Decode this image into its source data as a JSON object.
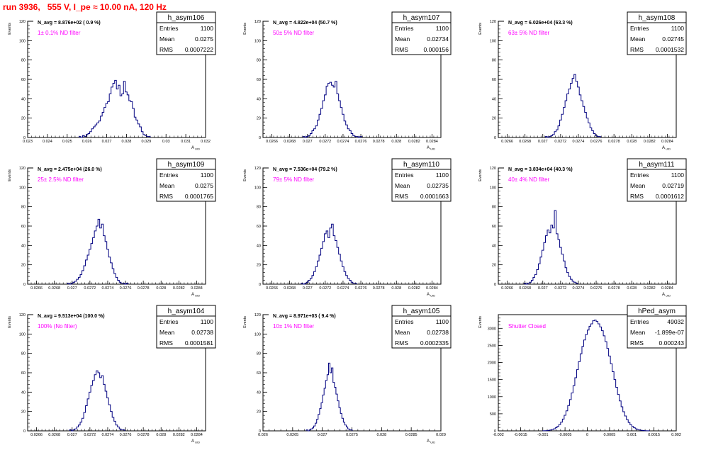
{
  "header": {
    "title": "run 3936,   555 V, I_pe ≈ 10.00 nA, 120 Hz",
    "title_color": "#ff0000"
  },
  "style": {
    "hist_color": "#000080",
    "label_color": "#ff00ff",
    "axis_color": "#000000"
  },
  "chart_data": [
    {
      "type": "histogram",
      "name": "h_asym106",
      "navg": "N_avg = 8.876e+02 ( 0.9 %)",
      "label": "1± 0.1% ND filter",
      "stats": [
        [
          "Entries",
          "1100"
        ],
        [
          "Mean",
          "0.0275"
        ],
        [
          "RMS",
          "0.0007222"
        ]
      ],
      "xlabel": "A_UID",
      "ylabel": "Events",
      "xlim": [
        0.023,
        0.032
      ],
      "ylim": [
        0,
        120
      ],
      "xticks": [
        0.023,
        0.024,
        0.025,
        0.026,
        0.027,
        0.028,
        0.029,
        0.03,
        0.031,
        0.032
      ],
      "xtick_labels": [
        "0.023",
        "0.024",
        "0.025",
        "0.026",
        "0.027",
        "0.028",
        "0.029",
        "0.03",
        "0.031",
        "0.032"
      ],
      "yticks": [
        0,
        20,
        40,
        60,
        80,
        100,
        120
      ],
      "ytick_labels": [
        "0",
        "20",
        "40",
        "60",
        "80",
        "100",
        "120"
      ],
      "bin_start": 0.0256,
      "bin_width": 9e-05,
      "counts": [
        1,
        0,
        2,
        1,
        3,
        4,
        6,
        9,
        11,
        13,
        15,
        17,
        22,
        26,
        31,
        35,
        37,
        45,
        52,
        56,
        59,
        50,
        54,
        43,
        45,
        58,
        47,
        44,
        38,
        37,
        30,
        21,
        18,
        14,
        11,
        6,
        3,
        2,
        1,
        1
      ]
    },
    {
      "type": "histogram",
      "name": "h_asym107",
      "navg": "N_avg = 4.822e+04 (50.7 %)",
      "label": "50± 5% ND filter",
      "stats": [
        [
          "Entries",
          "1100"
        ],
        [
          "Mean",
          "0.02734"
        ],
        [
          "RMS",
          "0.000156"
        ]
      ],
      "xlabel": "A_UID",
      "ylabel": "Events",
      "xlim": [
        0.0265,
        0.0285
      ],
      "ylim": [
        0,
        120
      ],
      "xticks": [
        0.0266,
        0.0268,
        0.027,
        0.0272,
        0.0274,
        0.0276,
        0.0278,
        0.028,
        0.0282,
        0.0284
      ],
      "xtick_labels": [
        "0.0266",
        "0.0268",
        "0.027",
        "0.0272",
        "0.0274",
        "0.0276",
        "0.0278",
        "0.028",
        "0.0282",
        "0.0284"
      ],
      "yticks": [
        0,
        20,
        40,
        60,
        80,
        100,
        120
      ],
      "ytick_labels": [
        "0",
        "20",
        "40",
        "60",
        "80",
        "100",
        "120"
      ],
      "bin_start": 0.02695,
      "bin_width": 2e-05,
      "counts": [
        1,
        0,
        1,
        2,
        4,
        7,
        9,
        12,
        18,
        24,
        30,
        38,
        44,
        53,
        56,
        57,
        54,
        52,
        58,
        45,
        38,
        31,
        24,
        17,
        13,
        9,
        7,
        4,
        2,
        1,
        1,
        0,
        1
      ]
    },
    {
      "type": "histogram",
      "name": "h_asym108",
      "navg": "N_avg = 6.026e+04 (63.3 %)",
      "label": "63± 5% ND filter",
      "stats": [
        [
          "Entries",
          "1100"
        ],
        [
          "Mean",
          "0.02745"
        ],
        [
          "RMS",
          "0.0001532"
        ]
      ],
      "xlabel": "A_UID",
      "ylabel": "Events",
      "xlim": [
        0.0265,
        0.0285
      ],
      "ylim": [
        0,
        120
      ],
      "xticks": [
        0.0266,
        0.0268,
        0.027,
        0.0272,
        0.0274,
        0.0276,
        0.0278,
        0.028,
        0.0282,
        0.0284
      ],
      "xtick_labels": [
        "0.0266",
        "0.0268",
        "0.027",
        "0.0272",
        "0.0274",
        "0.0276",
        "0.0278",
        "0.028",
        "0.0282",
        "0.0284"
      ],
      "yticks": [
        0,
        20,
        40,
        60,
        80,
        100,
        120
      ],
      "ytick_labels": [
        "0",
        "20",
        "40",
        "60",
        "80",
        "100",
        "120"
      ],
      "bin_start": 0.02703,
      "bin_width": 2e-05,
      "counts": [
        1,
        0,
        1,
        2,
        3,
        6,
        8,
        12,
        18,
        24,
        31,
        38,
        45,
        50,
        56,
        61,
        65,
        58,
        52,
        44,
        38,
        32,
        26,
        20,
        15,
        10,
        7,
        4,
        2,
        1,
        1
      ]
    },
    {
      "type": "histogram",
      "name": "h_asym109",
      "navg": "N_avg = 2.475e+04 (26.0 %)",
      "label": "25± 2.5% ND filter",
      "stats": [
        [
          "Entries",
          "1100"
        ],
        [
          "Mean",
          "0.0275"
        ],
        [
          "RMS",
          "0.0001765"
        ]
      ],
      "xlabel": "A_UID",
      "ylabel": "Events",
      "xlim": [
        0.0265,
        0.0285
      ],
      "ylim": [
        0,
        120
      ],
      "xticks": [
        0.0266,
        0.0268,
        0.027,
        0.0272,
        0.0274,
        0.0276,
        0.0278,
        0.028,
        0.0282,
        0.0284
      ],
      "xtick_labels": [
        "0.0266",
        "0.0268",
        "0.027",
        "0.0272",
        "0.0274",
        "0.0276",
        "0.0278",
        "0.028",
        "0.0282",
        "0.0284"
      ],
      "yticks": [
        0,
        20,
        40,
        60,
        80,
        100,
        120
      ],
      "ytick_labels": [
        "0",
        "20",
        "40",
        "60",
        "80",
        "100",
        "120"
      ],
      "bin_start": 0.02695,
      "bin_width": 2e-05,
      "counts": [
        1,
        0,
        1,
        2,
        3,
        5,
        7,
        10,
        14,
        19,
        25,
        30,
        36,
        42,
        48,
        55,
        60,
        67,
        58,
        62,
        50,
        44,
        36,
        28,
        22,
        16,
        11,
        7,
        4,
        2,
        1,
        1,
        0,
        1
      ]
    },
    {
      "type": "histogram",
      "name": "h_asym110",
      "navg": "N_avg = 7.536e+04 (79.2 %)",
      "label": "79± 5% ND filter",
      "stats": [
        [
          "Entries",
          "1100"
        ],
        [
          "Mean",
          "0.02735"
        ],
        [
          "RMS",
          "0.0001663"
        ]
      ],
      "xlabel": "A_UID",
      "ylabel": "Events",
      "xlim": [
        0.0265,
        0.0285
      ],
      "ylim": [
        0,
        120
      ],
      "xticks": [
        0.0266,
        0.0268,
        0.027,
        0.0272,
        0.0274,
        0.0276,
        0.0278,
        0.028,
        0.0282,
        0.0284
      ],
      "xtick_labels": [
        "0.0266",
        "0.0268",
        "0.027",
        "0.0272",
        "0.0274",
        "0.0276",
        "0.0278",
        "0.028",
        "0.0282",
        "0.0284"
      ],
      "yticks": [
        0,
        20,
        40,
        60,
        80,
        100,
        120
      ],
      "ytick_labels": [
        "0",
        "20",
        "40",
        "60",
        "80",
        "100",
        "120"
      ],
      "bin_start": 0.02693,
      "bin_width": 2e-05,
      "counts": [
        1,
        0,
        1,
        2,
        4,
        6,
        9,
        13,
        18,
        24,
        30,
        37,
        44,
        52,
        55,
        48,
        58,
        62,
        50,
        45,
        38,
        31,
        24,
        18,
        13,
        9,
        6,
        4,
        2,
        1,
        1
      ]
    },
    {
      "type": "histogram",
      "name": "h_asym111",
      "navg": "N_avg = 3.834e+04 (40.3 %)",
      "label": "40± 4% ND filter",
      "stats": [
        [
          "Entries",
          "1100"
        ],
        [
          "Mean",
          "0.02719"
        ],
        [
          "RMS",
          "0.0001612"
        ]
      ],
      "xlabel": "A_UID",
      "ylabel": "Events",
      "xlim": [
        0.0265,
        0.0285
      ],
      "ylim": [
        0,
        120
      ],
      "xticks": [
        0.0266,
        0.0268,
        0.027,
        0.0272,
        0.0274,
        0.0276,
        0.0278,
        0.028,
        0.0282,
        0.0284
      ],
      "xtick_labels": [
        "0.0266",
        "0.0268",
        "0.027",
        "0.0272",
        "0.0274",
        "0.0276",
        "0.0278",
        "0.028",
        "0.0282",
        "0.0284"
      ],
      "yticks": [
        0,
        20,
        40,
        60,
        80,
        100,
        120
      ],
      "ytick_labels": [
        "0",
        "20",
        "40",
        "60",
        "80",
        "100",
        "120"
      ],
      "bin_start": 0.02679,
      "bin_width": 2e-05,
      "counts": [
        1,
        0,
        1,
        2,
        4,
        7,
        10,
        15,
        21,
        28,
        35,
        43,
        50,
        56,
        53,
        61,
        58,
        76,
        52,
        46,
        38,
        31,
        24,
        17,
        12,
        8,
        5,
        3,
        2,
        1
      ]
    },
    {
      "type": "histogram",
      "name": "h_asym104",
      "navg": "N_avg = 9.513e+04 (100.0 %)",
      "label": "100% (No filter)",
      "stats": [
        [
          "Entries",
          "1100"
        ],
        [
          "Mean",
          "0.02738"
        ],
        [
          "RMS",
          "0.0001581"
        ]
      ],
      "xlabel": "A_UID",
      "ylabel": "Events",
      "xlim": [
        0.0265,
        0.0285
      ],
      "ylim": [
        0,
        120
      ],
      "xticks": [
        0.0266,
        0.0268,
        0.027,
        0.0272,
        0.0274,
        0.0276,
        0.0278,
        0.028,
        0.0282,
        0.0284
      ],
      "xtick_labels": [
        "0.0266",
        "0.0268",
        "0.027",
        "0.0272",
        "0.0274",
        "0.0276",
        "0.0278",
        "0.028",
        "0.0282",
        "0.0284"
      ],
      "yticks": [
        0,
        20,
        40,
        60,
        80,
        100,
        120
      ],
      "ytick_labels": [
        "0",
        "20",
        "40",
        "60",
        "80",
        "100",
        "120"
      ],
      "bin_start": 0.02697,
      "bin_width": 2e-05,
      "counts": [
        1,
        0,
        1,
        2,
        4,
        6,
        9,
        13,
        19,
        26,
        33,
        40,
        47,
        52,
        58,
        62,
        60,
        55,
        57,
        48,
        41,
        34,
        27,
        20,
        14,
        10,
        6,
        4,
        2,
        1,
        1
      ]
    },
    {
      "type": "histogram",
      "name": "h_asym105",
      "navg": "N_avg = 8.971e+03 ( 9.4 %)",
      "label": "10± 1% ND filter",
      "stats": [
        [
          "Entries",
          "1100"
        ],
        [
          "Mean",
          "0.02738"
        ],
        [
          "RMS",
          "0.0002335"
        ]
      ],
      "xlabel": "A_UID",
      "ylabel": "Events",
      "xlim": [
        0.026,
        0.029
      ],
      "ylim": [
        0,
        120
      ],
      "xticks": [
        0.026,
        0.0265,
        0.027,
        0.0275,
        0.028,
        0.0285,
        0.029
      ],
      "xtick_labels": [
        "0.026",
        "0.0265",
        "0.027",
        "0.0275",
        "0.028",
        "0.0285",
        "0.029"
      ],
      "yticks": [
        0,
        20,
        40,
        60,
        80,
        100,
        120
      ],
      "ytick_labels": [
        "0",
        "20",
        "40",
        "60",
        "80",
        "100",
        "120"
      ],
      "bin_start": 0.02673,
      "bin_width": 2.5e-05,
      "counts": [
        1,
        0,
        1,
        2,
        3,
        5,
        8,
        12,
        17,
        23,
        29,
        37,
        44,
        52,
        58,
        70,
        60,
        65,
        50,
        45,
        38,
        31,
        24,
        18,
        13,
        9,
        6,
        4,
        2,
        1,
        1
      ]
    },
    {
      "type": "histogram",
      "name": "hPed_asym",
      "navg": "",
      "label": "Shutter Closed",
      "stats": [
        [
          "Entries",
          "49032"
        ],
        [
          "Mean",
          "-1.899e-07"
        ],
        [
          "RMS",
          "0.000243"
        ]
      ],
      "xlabel": "",
      "ylabel": "Events",
      "xlim": [
        -0.002,
        0.002
      ],
      "ylim": [
        0,
        3400
      ],
      "xticks": [
        -0.002,
        -0.0015,
        -0.001,
        -0.0005,
        0,
        0.0005,
        0.001,
        0.0015,
        0.002
      ],
      "xtick_labels": [
        "-0.002",
        "-0.0015",
        "-0.001",
        "-0.0005",
        "0",
        "0.0005",
        "0.001",
        "0.0015",
        "0.002"
      ],
      "yticks": [
        0,
        500,
        1000,
        1500,
        2000,
        2500,
        3000
      ],
      "ytick_labels": [
        "0",
        "500",
        "1000",
        "1500",
        "2000",
        "2500",
        "3000"
      ],
      "bin_start": -0.001,
      "bin_width": 4e-05,
      "counts": [
        2,
        5,
        9,
        15,
        25,
        39,
        60,
        90,
        130,
        185,
        255,
        345,
        455,
        585,
        740,
        915,
        1110,
        1325,
        1555,
        1790,
        2025,
        2255,
        2470,
        2660,
        2820,
        2950,
        3060,
        3130,
        3220,
        3240,
        3200,
        3130,
        3040,
        2930,
        2780,
        2610,
        2410,
        2190,
        1965,
        1730,
        1500,
        1275,
        1065,
        875,
        705,
        560,
        435,
        330,
        245,
        180,
        130,
        90,
        60,
        40,
        26,
        16,
        10,
        6,
        3,
        2
      ]
    }
  ]
}
